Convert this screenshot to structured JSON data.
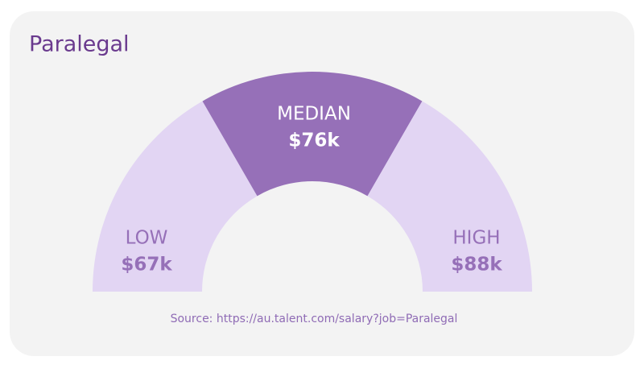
{
  "title": "Paralegal",
  "segments": [
    {
      "label": "LOW",
      "value": "$67k"
    },
    {
      "label": "MEDIAN",
      "value": "$76k"
    },
    {
      "label": "HIGH",
      "value": "$88k"
    }
  ],
  "source": "Source: https://au.talent.com/salary?job=Paralegal"
}
